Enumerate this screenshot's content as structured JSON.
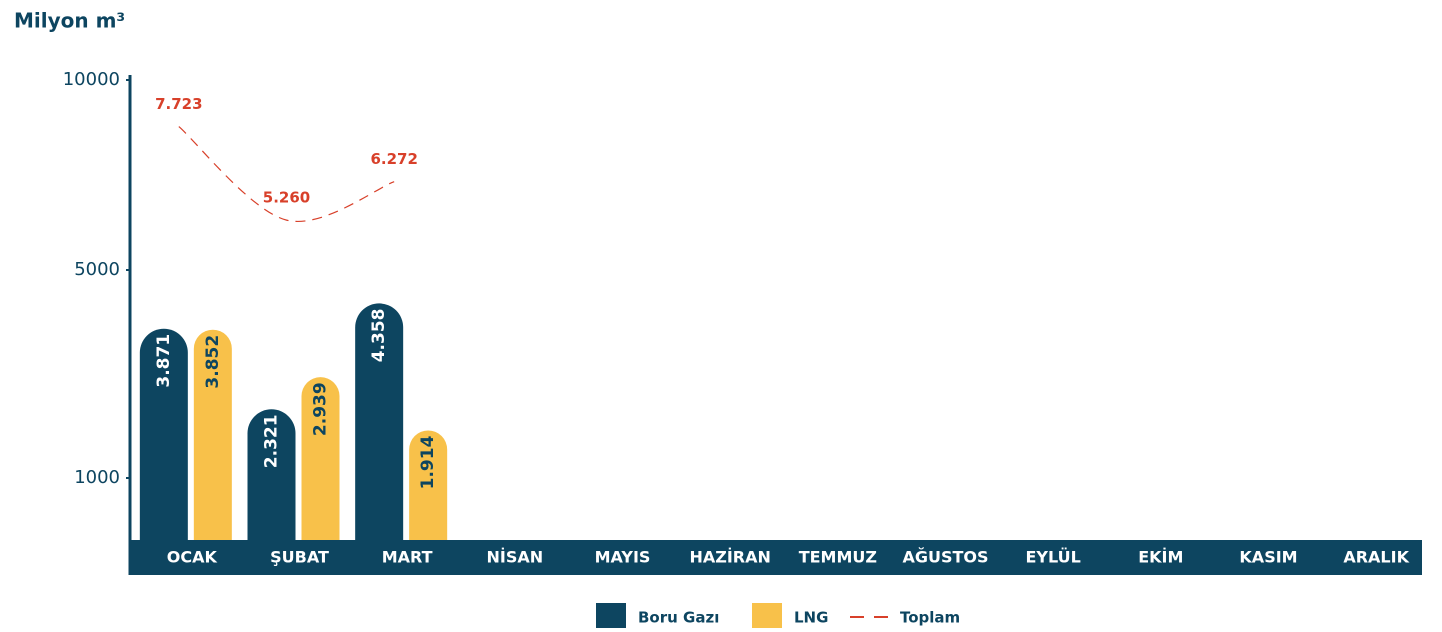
{
  "chart_data": {
    "type": "bar",
    "y_label": "Milyon m³",
    "categories": [
      "OCAK",
      "ŞUBAT",
      "MART",
      "NİSAN",
      "MAYIS",
      "HAZİRAN",
      "TEMMUZ",
      "AĞUSTOS",
      "EYLÜL",
      "EKİM",
      "KASIM",
      "ARALIK"
    ],
    "series": [
      {
        "name": "Boru Gazı",
        "color": "#0d4560",
        "values": [
          3871,
          2321,
          4358,
          null,
          null,
          null,
          null,
          null,
          null,
          null,
          null,
          null
        ],
        "value_labels": [
          "3.871",
          "2.321",
          "4.358",
          null,
          null,
          null,
          null,
          null,
          null,
          null,
          null,
          null
        ]
      },
      {
        "name": "LNG",
        "color": "#f8c14a",
        "values": [
          3852,
          2939,
          1914,
          null,
          null,
          null,
          null,
          null,
          null,
          null,
          null,
          null
        ],
        "value_labels": [
          "3.852",
          "2.939",
          "1.914",
          null,
          null,
          null,
          null,
          null,
          null,
          null,
          null,
          null
        ]
      },
      {
        "name": "Toplam",
        "type": "line",
        "color": "#d8402a",
        "values": [
          7723,
          5260,
          6272,
          null,
          null,
          null,
          null,
          null,
          null,
          null,
          null,
          null
        ],
        "value_labels": [
          "7.723",
          "5.260",
          "6.272",
          null,
          null,
          null,
          null,
          null,
          null,
          null,
          null,
          null
        ]
      }
    ],
    "ylim": [
      0,
      10000
    ],
    "yticks": [
      1000,
      5000,
      10000
    ]
  }
}
